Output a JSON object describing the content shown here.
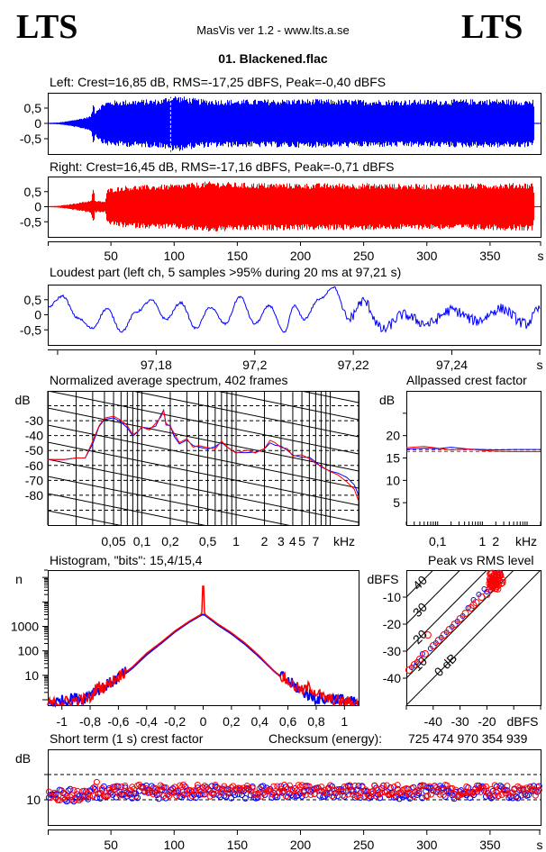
{
  "header": {
    "logo_left": "LTS",
    "logo_right": "LTS",
    "app_title": "MasVis ver 1.2 - www.lts.a.se",
    "file_name": "01. Blackened.flac"
  },
  "colors": {
    "left": "#0000ff",
    "right": "#ff0000",
    "axis": "#000000"
  },
  "chart_data": [
    {
      "id": "left-waveform",
      "type": "area",
      "title": "Left: Crest=16,85 dB, RMS=-17,25 dBFS, Peak=-0,40 dBFS",
      "ylim": [
        -1,
        1
      ],
      "yticks": [
        "0,5",
        "0",
        "-0,5"
      ],
      "ytick_values": [
        0.5,
        0,
        -0.5
      ],
      "xlim": [
        0,
        390
      ],
      "marker_x": 97.21,
      "envelope": [
        [
          0,
          0.02
        ],
        [
          8,
          0.03
        ],
        [
          15,
          0.07
        ],
        [
          22,
          0.13
        ],
        [
          30,
          0.2
        ],
        [
          34,
          0.26
        ],
        [
          36,
          0.72
        ],
        [
          37,
          0.4
        ],
        [
          40,
          0.55
        ],
        [
          45,
          0.72
        ],
        [
          50,
          0.75
        ],
        [
          70,
          0.78
        ],
        [
          90,
          0.8
        ],
        [
          97,
          0.95
        ],
        [
          120,
          0.8
        ],
        [
          150,
          0.78
        ],
        [
          200,
          0.8
        ],
        [
          250,
          0.78
        ],
        [
          300,
          0.78
        ],
        [
          350,
          0.8
        ],
        [
          384,
          0.78
        ],
        [
          385,
          0.02
        ],
        [
          390,
          0.02
        ]
      ]
    },
    {
      "id": "right-waveform",
      "type": "area",
      "title": "Right: Crest=16,45 dB, RMS=-17,16 dBFS, Peak=-0,71 dBFS",
      "ylim": [
        -1,
        1
      ],
      "yticks": [
        "0,5",
        "0",
        "-0,5"
      ],
      "ytick_values": [
        0.5,
        0,
        -0.5
      ],
      "xlim": [
        0,
        390
      ],
      "xticks": [
        "50",
        "100",
        "150",
        "200",
        "250",
        "300",
        "350",
        "s"
      ],
      "xtick_values": [
        50,
        100,
        150,
        200,
        250,
        300,
        350,
        390
      ],
      "envelope": [
        [
          0,
          0.02
        ],
        [
          8,
          0.03
        ],
        [
          15,
          0.07
        ],
        [
          22,
          0.12
        ],
        [
          30,
          0.18
        ],
        [
          34,
          0.22
        ],
        [
          36,
          0.7
        ],
        [
          37,
          0.2
        ],
        [
          45,
          0.18
        ],
        [
          47,
          0.6
        ],
        [
          60,
          0.7
        ],
        [
          100,
          0.75
        ],
        [
          130,
          0.85
        ],
        [
          150,
          0.8
        ],
        [
          200,
          0.78
        ],
        [
          250,
          0.78
        ],
        [
          300,
          0.75
        ],
        [
          350,
          0.78
        ],
        [
          384,
          0.8
        ],
        [
          385,
          0.02
        ],
        [
          390,
          0.02
        ]
      ]
    },
    {
      "id": "loudest-part",
      "type": "line",
      "title": "Loudest part (left  ch, 5 samples >95% during 20 ms at 97,21 s)",
      "ylim": [
        -1,
        1
      ],
      "yticks": [
        "0,5",
        "0",
        "-0,5"
      ],
      "ytick_values": [
        0.5,
        0,
        -0.5
      ],
      "xlim": [
        97.158,
        97.258
      ],
      "xticks": [
        "97,18",
        "97,2",
        "97,22",
        "97,24",
        "s"
      ],
      "xtick_values": [
        97.18,
        97.2,
        97.22,
        97.24,
        97.258
      ],
      "minor_tick_values": [
        97.16
      ],
      "x": [
        97.158,
        97.161,
        97.164,
        97.167,
        97.17,
        97.173,
        97.176,
        97.179,
        97.182,
        97.185,
        97.188,
        97.191,
        97.194,
        97.197,
        97.2,
        97.203,
        97.206,
        97.208,
        97.21,
        97.213,
        97.216,
        97.219,
        97.222,
        97.226,
        97.23,
        97.235,
        97.24,
        97.245,
        97.25,
        97.255,
        97.258
      ],
      "y": [
        0.25,
        0.62,
        -0.1,
        -0.45,
        0.2,
        -0.55,
        0.1,
        0.48,
        -0.15,
        0.4,
        -0.45,
        0.25,
        -0.3,
        0.6,
        -0.3,
        0.3,
        -0.6,
        0.3,
        -0.15,
        0.5,
        0.92,
        -0.15,
        0.45,
        -0.5,
        0.0,
        -0.3,
        0.15,
        -0.2,
        0.2,
        -0.3,
        0.2
      ]
    },
    {
      "id": "spectrum",
      "type": "line",
      "title": "Normalized average spectrum, 402 frames",
      "ylabel": "dB",
      "ylim": [
        -100,
        -10
      ],
      "yticks": [
        "-30",
        "-40",
        "-50",
        "-60",
        "-70",
        "-80"
      ],
      "ytick_values": [
        -30,
        -40,
        -50,
        -60,
        -70,
        -80
      ],
      "xscale": "log",
      "xlim_khz": [
        0.01,
        20
      ],
      "xticks": [
        "0,05",
        "0,1",
        "0,2",
        "0,5",
        "1",
        "2",
        "3",
        "4",
        "5",
        "7",
        "kHz"
      ],
      "xtick_values": [
        0.05,
        0.1,
        0.2,
        0.5,
        1,
        2,
        3,
        4,
        5,
        7,
        20
      ],
      "series": [
        {
          "name": "left",
          "x": [
            0.01,
            0.015,
            0.02,
            0.025,
            0.03,
            0.035,
            0.04,
            0.05,
            0.06,
            0.07,
            0.08,
            0.09,
            0.1,
            0.12,
            0.14,
            0.16,
            0.17,
            0.18,
            0.2,
            0.22,
            0.25,
            0.3,
            0.35,
            0.4,
            0.5,
            0.6,
            0.7,
            0.8,
            1,
            1.3,
            1.6,
            2,
            2.3,
            2.6,
            3,
            3.5,
            4,
            5,
            6,
            7,
            8,
            10,
            12,
            15,
            18,
            20
          ],
          "y": [
            -56,
            -56,
            -55,
            -55,
            -45,
            -33,
            -29,
            -29,
            -30,
            -34,
            -41,
            -38,
            -35,
            -36,
            -33,
            -27,
            -22,
            -33,
            -34,
            -40,
            -45,
            -43,
            -46,
            -47,
            -50,
            -48,
            -45,
            -48,
            -52,
            -51,
            -52,
            -49,
            -45,
            -46,
            -48,
            -50,
            -54,
            -54,
            -55,
            -58,
            -61,
            -63,
            -65,
            -68,
            -73,
            -80
          ]
        },
        {
          "name": "right",
          "x": [
            0.01,
            0.015,
            0.02,
            0.025,
            0.03,
            0.035,
            0.04,
            0.05,
            0.06,
            0.07,
            0.08,
            0.09,
            0.1,
            0.12,
            0.14,
            0.16,
            0.17,
            0.18,
            0.2,
            0.22,
            0.25,
            0.3,
            0.35,
            0.4,
            0.5,
            0.6,
            0.7,
            0.8,
            1,
            1.3,
            1.6,
            2,
            2.3,
            2.6,
            3,
            3.5,
            4,
            5,
            6,
            7,
            8,
            10,
            12,
            15,
            18,
            20
          ],
          "y": [
            -56,
            -56,
            -55,
            -55,
            -44,
            -33,
            -29,
            -28,
            -29,
            -34,
            -40,
            -37,
            -34,
            -37,
            -32,
            -28,
            -23,
            -32,
            -33,
            -39,
            -44,
            -42,
            -47,
            -47,
            -49,
            -49,
            -44,
            -47,
            -52,
            -50,
            -52,
            -49,
            -44,
            -45,
            -48,
            -49,
            -54,
            -53,
            -55,
            -58,
            -61,
            -64,
            -67,
            -71,
            -76,
            -84
          ]
        }
      ]
    },
    {
      "id": "allpassed-crest",
      "type": "line",
      "title": "Allpassed crest factor",
      "ylabel": "dB",
      "ylim": [
        0,
        30
      ],
      "yticks": [
        "20",
        "15",
        "10",
        "5"
      ],
      "ytick_values": [
        20,
        15,
        10,
        5
      ],
      "xscale": "log",
      "xlim_khz": [
        0.02,
        20
      ],
      "xticks": [
        "0,1",
        "1",
        "2",
        "kHz"
      ],
      "xtick_values": [
        0.1,
        1,
        2,
        20
      ],
      "series": [
        {
          "name": "left",
          "x": [
            0.02,
            0.05,
            0.1,
            0.2,
            0.5,
            1,
            2,
            5,
            10,
            20
          ],
          "y": [
            17.0,
            17.2,
            17.1,
            17.4,
            17.0,
            16.9,
            16.8,
            16.9,
            16.9,
            16.9
          ],
          "ref": 16.85
        },
        {
          "name": "right",
          "x": [
            0.02,
            0.05,
            0.1,
            0.2,
            0.5,
            1,
            2,
            5,
            10,
            20
          ],
          "y": [
            17.3,
            17.6,
            17.2,
            16.8,
            17.0,
            16.7,
            16.5,
            16.4,
            16.4,
            16.4
          ],
          "ref": 16.45
        }
      ]
    },
    {
      "id": "histogram",
      "type": "line",
      "title": "Histogram, \"bits\": 15,4/15,4",
      "ylabel": "n",
      "yscale": "log",
      "ylim": [
        0.6,
        200000
      ],
      "yticks": [
        "1000",
        "100",
        "10"
      ],
      "ytick_values": [
        1000,
        100,
        10
      ],
      "xlim": [
        -1.1,
        1.1
      ],
      "xticks": [
        "-1",
        "-0,8",
        "-0,6",
        "-0,4",
        "-0,2",
        "0",
        "0,2",
        "0,4",
        "0,6",
        "0,8",
        "1"
      ],
      "xtick_values": [
        -1,
        -0.8,
        -0.6,
        -0.4,
        -0.2,
        0,
        0.2,
        0.4,
        0.6,
        0.8,
        1
      ],
      "series": [
        {
          "name": "left",
          "x": [
            -1.1,
            -0.92,
            -0.85,
            -0.78,
            -0.7,
            -0.6,
            -0.5,
            -0.4,
            -0.3,
            -0.2,
            -0.1,
            -0.01,
            0,
            0.01,
            0.1,
            0.2,
            0.3,
            0.4,
            0.5,
            0.6,
            0.7,
            0.8,
            0.87,
            0.95,
            1.1
          ],
          "y": [
            0.6,
            1,
            1,
            2,
            3,
            7,
            20,
            70,
            200,
            600,
            1500,
            3000,
            3000,
            3000,
            1200,
            500,
            180,
            55,
            15,
            5,
            2,
            1,
            1,
            1,
            0.6
          ]
        },
        {
          "name": "right",
          "x": [
            -1.1,
            -0.8,
            -0.75,
            -0.7,
            -0.6,
            -0.5,
            -0.4,
            -0.3,
            -0.2,
            -0.1,
            -0.01,
            0,
            0.01,
            0.1,
            0.2,
            0.3,
            0.4,
            0.5,
            0.6,
            0.7,
            0.75,
            0.86,
            1.1
          ],
          "y": [
            0.6,
            1,
            3,
            3,
            8,
            22,
            80,
            220,
            650,
            1600,
            3200,
            150000,
            3200,
            1300,
            550,
            200,
            60,
            15,
            5,
            2,
            3,
            1,
            0.6
          ]
        }
      ]
    },
    {
      "id": "peak-vs-rms",
      "type": "scatter",
      "title": "Peak vs RMS level",
      "ylabel": "dBFS",
      "xlabel": "dBFS",
      "xlim": [
        -50,
        0
      ],
      "ylim": [
        -50,
        0
      ],
      "xticks": [
        "-40",
        "-30",
        "-20",
        "dBFS"
      ],
      "xtick_values": [
        -40,
        -30,
        -20,
        -1
      ],
      "yticks": [
        "-10",
        "-20",
        "-30",
        "-40"
      ],
      "ytick_values": [
        -10,
        -20,
        -30,
        -40
      ],
      "crest_lines": [
        "0 dB",
        "10",
        "20",
        "30",
        "40"
      ],
      "crest_line_values": [
        0,
        10,
        20,
        30,
        40
      ],
      "series": [
        {
          "name": "left",
          "x": [
            -48,
            -46,
            -44,
            -41,
            -39,
            -37,
            -35,
            -33,
            -31,
            -29,
            -27,
            -25,
            -23,
            -21,
            -19,
            -18,
            -17,
            -16,
            -15,
            -20,
            -18,
            -17
          ],
          "y": [
            -36,
            -34,
            -31,
            -29,
            -27,
            -25,
            -23,
            -21,
            -19,
            -17,
            -14,
            -11,
            -9,
            -7,
            -4,
            -3,
            -2,
            -1,
            -1,
            -8,
            -6,
            -5
          ]
        },
        {
          "name": "right",
          "x": [
            -49,
            -47,
            -45,
            -43,
            -42,
            -40,
            -38,
            -36,
            -34,
            -32,
            -30,
            -28,
            -26,
            -25,
            -24,
            -22,
            -20,
            -19,
            -18,
            -17,
            -16,
            -15,
            -18,
            -17,
            -16,
            -19
          ],
          "y": [
            -37,
            -35,
            -33,
            -31,
            -24,
            -28,
            -26,
            -24,
            -22,
            -20,
            -18,
            -16,
            -14,
            -13,
            -12,
            -10,
            -9,
            -5,
            -4,
            -3,
            -2,
            -2,
            -6,
            -5,
            -4,
            -7
          ]
        }
      ]
    },
    {
      "id": "short-term-crest",
      "type": "scatter",
      "title": "Short term (1 s) crest factor",
      "ylabel": "dB",
      "ylim": [
        5,
        20
      ],
      "yticks": [
        "10"
      ],
      "ytick_values": [
        10
      ],
      "dashed_lines": [
        10,
        15
      ],
      "xlim": [
        0,
        390
      ],
      "xticks": [
        "50",
        "100",
        "150",
        "200",
        "250",
        "300",
        "350",
        "s"
      ],
      "xtick_values": [
        50,
        100,
        150,
        200,
        250,
        300,
        350,
        390
      ],
      "series": [
        {
          "name": "left",
          "base": 11.5,
          "spread": 1.3
        },
        {
          "name": "right",
          "base": 11.8,
          "spread": 1.2
        }
      ]
    }
  ],
  "checksum": {
    "label": "Checksum (energy):",
    "value": "725 474 970 354 939"
  }
}
